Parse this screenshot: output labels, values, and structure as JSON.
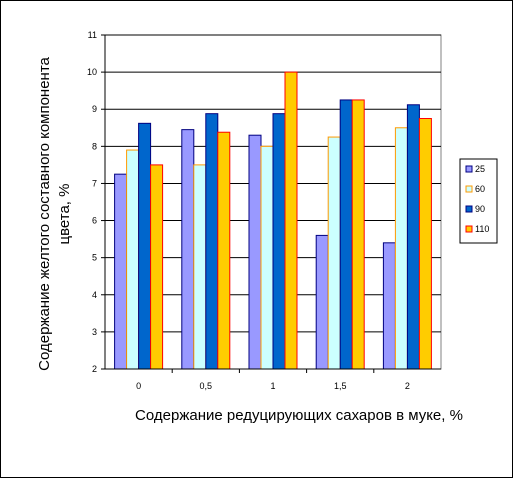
{
  "chart_data": {
    "type": "bar",
    "categories": [
      "0",
      "0,5",
      "1",
      "1,5",
      "2"
    ],
    "series": [
      {
        "name": "25",
        "values": [
          7.25,
          8.45,
          8.3,
          5.6,
          5.4
        ],
        "fill": "#9999ff",
        "stroke": "#000080"
      },
      {
        "name": "60",
        "values": [
          7.9,
          7.5,
          8.0,
          8.25,
          8.5
        ],
        "fill": "#ccffff",
        "stroke": "#ff9900"
      },
      {
        "name": "90",
        "values": [
          8.62,
          8.88,
          8.88,
          9.25,
          9.12
        ],
        "fill": "#0066cc",
        "stroke": "#000080"
      },
      {
        "name": "110",
        "values": [
          7.5,
          8.38,
          10.0,
          9.25,
          8.75
        ],
        "fill": "#ffcc00",
        "stroke": "#ff0000"
      }
    ],
    "yticks": [
      "2",
      "3",
      "4",
      "5",
      "6",
      "7",
      "8",
      "9",
      "10",
      "11"
    ],
    "ylim": [
      2,
      11
    ],
    "ylabel_line1": "Содержание желтого составного компонента",
    "ylabel_line2": "цвета, %",
    "xlabel": "Содержание редуцирующих сахаров в муке, %",
    "grid": "horizontal",
    "legend": "right"
  }
}
